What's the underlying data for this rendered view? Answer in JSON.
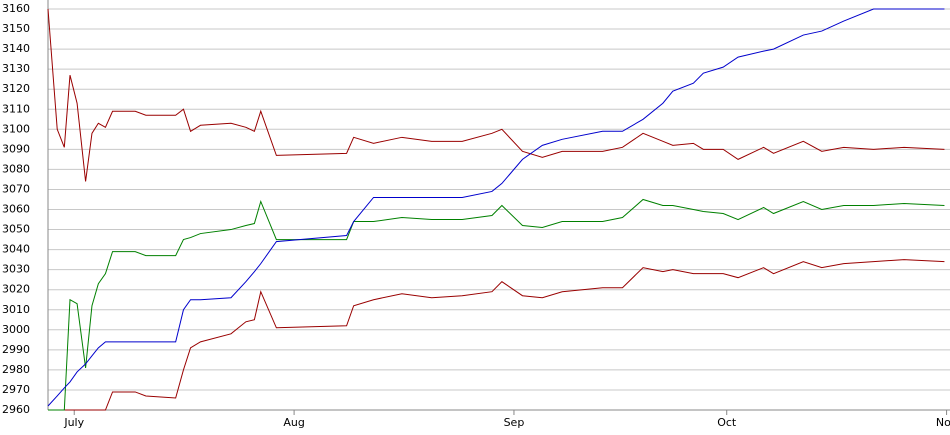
{
  "chart_data": {
    "type": "line",
    "x": [
      -3.7,
      -2.4,
      -1.4,
      -0.6,
      0.4,
      1.6,
      2.5,
      3.4,
      4.4,
      5.4,
      8.6,
      10.1,
      14.3,
      15.4,
      16.4,
      17.8,
      22.1,
      24.2,
      25.4,
      26.3,
      28.5,
      38.4,
      39.4,
      42.2,
      46.2,
      50.4,
      54.7,
      58.9,
      60.3,
      63.2,
      66,
      68.8,
      74.5,
      77.3,
      80.2,
      83,
      84.4,
      87.3,
      88.7,
      91.5,
      93.6,
      97.2,
      98.6,
      102.8,
      105.4,
      108.5,
      112.7,
      117,
      122.7
    ],
    "series": [
      {
        "color": "#990000",
        "values": [
          3160,
          3100,
          3091,
          3127,
          3113,
          3074,
          3098,
          3103,
          3101,
          3109,
          3109,
          3107,
          3107,
          3110,
          3099,
          3102,
          3103,
          3101,
          3099,
          3109,
          3087,
          3088,
          3096,
          3093,
          3096,
          3094,
          3094,
          3098,
          3100,
          3089,
          3086,
          3089,
          3089,
          3091,
          3098,
          3094,
          3092,
          3093,
          3090,
          3090,
          3085,
          3091,
          3088,
          3094,
          3089,
          3091,
          3090,
          3091,
          3090
        ]
      },
      {
        "color": "#990000",
        "values": [
          2960,
          2960,
          2960,
          2960,
          2960,
          2960,
          2960,
          2960,
          2960,
          2969,
          2969,
          2967,
          2966,
          2980,
          2991,
          2994,
          2998,
          3004,
          3005,
          3019,
          3001,
          3002,
          3012,
          3015,
          3018,
          3016,
          3017,
          3019,
          3024,
          3017,
          3016,
          3019,
          3021,
          3021,
          3031,
          3029,
          3030,
          3028,
          3028,
          3028,
          3026,
          3031,
          3028,
          3034,
          3031,
          3033,
          3034,
          3035,
          3034
        ]
      },
      {
        "color": "#008000",
        "values": [
          2960,
          2960,
          2960,
          3015,
          3013,
          2981,
          3012,
          3023,
          3028,
          3039,
          3039,
          3037,
          3037,
          3045,
          3046,
          3048,
          3050,
          3052,
          3053,
          3064,
          3045,
          3045,
          3054,
          3054,
          3056,
          3055,
          3055,
          3057,
          3062,
          3052,
          3051,
          3054,
          3054,
          3056,
          3065,
          3062,
          3062,
          3060,
          3059,
          3058,
          3055,
          3061,
          3058,
          3064,
          3060,
          3062,
          3062,
          3063,
          3062
        ]
      },
      {
        "color": "#0000cc",
        "values": [
          2962,
          2967,
          2971,
          2974,
          2979,
          2983,
          2987,
          2991,
          2994,
          2994,
          2994,
          2994,
          2994,
          3010,
          3015,
          3015,
          3016,
          3024,
          3029,
          3033,
          3044,
          3047,
          3054,
          3066,
          3066,
          3066,
          3066,
          3069,
          3073,
          3085,
          3092,
          3095,
          3099,
          3099,
          3105,
          3113,
          3119,
          3123,
          3128,
          3131,
          3136,
          3139,
          3140,
          3147,
          3149,
          3154,
          3160,
          3160,
          3160
        ]
      }
    ],
    "xlim": [
      -3.7,
      123.2
    ],
    "xticks": [
      {
        "value": 0,
        "label": "July"
      },
      {
        "value": 31,
        "label": "Aug"
      },
      {
        "value": 62,
        "label": "Sep"
      },
      {
        "value": 92,
        "label": "Oct"
      },
      {
        "value": 123,
        "label": "Nov"
      }
    ],
    "ylim": [
      2960,
      3160
    ],
    "yticks": [
      2960,
      2970,
      2980,
      2990,
      3000,
      3010,
      3020,
      3030,
      3040,
      3050,
      3060,
      3070,
      3080,
      3090,
      3100,
      3110,
      3120,
      3130,
      3140,
      3150,
      3160
    ],
    "grid": true
  }
}
